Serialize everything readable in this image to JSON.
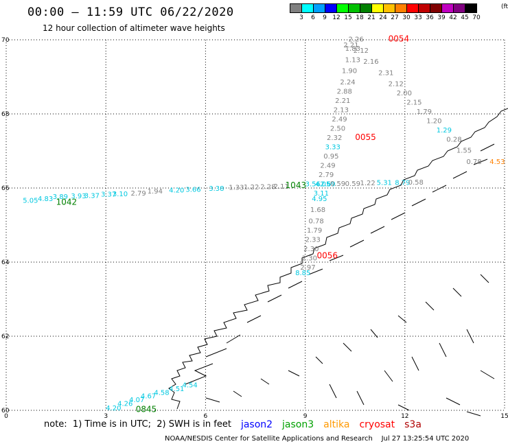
{
  "header": {
    "title": "00:00 – 11:59 UTC 06/22/2020",
    "subtitle": "12 hour collection of altimeter wave heights"
  },
  "legend": {
    "unit": "(ft)",
    "bins": [
      {
        "label": "3",
        "color": "#808080"
      },
      {
        "label": "6",
        "color": "#00ffff"
      },
      {
        "label": "9",
        "color": "#00a0ff"
      },
      {
        "label": "12",
        "color": "#0000ff"
      },
      {
        "label": "15",
        "color": "#00ff00"
      },
      {
        "label": "18",
        "color": "#00c000"
      },
      {
        "label": "21",
        "color": "#008000"
      },
      {
        "label": "24",
        "color": "#ffff00"
      },
      {
        "label": "27",
        "color": "#ffc000"
      },
      {
        "label": "30",
        "color": "#ff8000"
      },
      {
        "label": "33",
        "color": "#ff0000"
      },
      {
        "label": "36",
        "color": "#c00000"
      },
      {
        "label": "39",
        "color": "#800000"
      },
      {
        "label": "42",
        "color": "#c000c0"
      },
      {
        "label": "45",
        "color": "#800080"
      },
      {
        "label": "70",
        "color": "#000000"
      }
    ]
  },
  "map": {
    "lon_ticks": [
      "0",
      "3",
      "6",
      "9",
      "12",
      "15"
    ],
    "lat_ticks": [
      "70",
      "68",
      "66",
      "64",
      "62",
      "60"
    ],
    "lon_range": [
      0,
      15
    ],
    "lat_range": [
      60,
      70
    ],
    "track_east": {
      "points": [
        {
          "lon": 10.3,
          "lat": 69.95,
          "v": "2.26",
          "c": "#808080"
        },
        {
          "lon": 10.15,
          "lat": 69.8,
          "v": "2.21",
          "c": "#808080"
        },
        {
          "lon": 10.2,
          "lat": 69.7,
          "v": "1.83",
          "c": "#808080"
        },
        {
          "lon": 10.45,
          "lat": 69.65,
          "v": "2.12",
          "c": "#808080"
        },
        {
          "lon": 10.2,
          "lat": 69.4,
          "v": "1.13",
          "c": "#808080"
        },
        {
          "lon": 10.75,
          "lat": 69.35,
          "v": "2.16",
          "c": "#808080"
        },
        {
          "lon": 10.1,
          "lat": 69.1,
          "v": "1.90",
          "c": "#808080"
        },
        {
          "lon": 11.2,
          "lat": 69.05,
          "v": "2.31",
          "c": "#808080"
        },
        {
          "lon": 10.05,
          "lat": 68.8,
          "v": "2.24",
          "c": "#808080"
        },
        {
          "lon": 11.5,
          "lat": 68.75,
          "v": "2.12",
          "c": "#808080"
        },
        {
          "lon": 9.95,
          "lat": 68.55,
          "v": "2.88",
          "c": "#808080"
        },
        {
          "lon": 11.75,
          "lat": 68.5,
          "v": "2.00",
          "c": "#808080"
        },
        {
          "lon": 9.9,
          "lat": 68.3,
          "v": "2.21",
          "c": "#808080"
        },
        {
          "lon": 12.05,
          "lat": 68.25,
          "v": "2.15",
          "c": "#808080"
        },
        {
          "lon": 9.85,
          "lat": 68.05,
          "v": "2.13",
          "c": "#808080"
        },
        {
          "lon": 12.35,
          "lat": 68.0,
          "v": "1.79",
          "c": "#808080"
        },
        {
          "lon": 9.8,
          "lat": 67.8,
          "v": "2.49",
          "c": "#808080"
        },
        {
          "lon": 12.65,
          "lat": 67.75,
          "v": "1.20",
          "c": "#808080"
        },
        {
          "lon": 9.75,
          "lat": 67.55,
          "v": "2.50",
          "c": "#808080"
        },
        {
          "lon": 12.95,
          "lat": 67.5,
          "v": "1.29",
          "c": "#00c8e0"
        },
        {
          "lon": 9.65,
          "lat": 67.3,
          "v": "2.32",
          "c": "#808080"
        },
        {
          "lon": 13.25,
          "lat": 67.25,
          "v": "0.28",
          "c": "#808080"
        },
        {
          "lon": 9.6,
          "lat": 67.05,
          "v": "3.33",
          "c": "#00c8e0"
        },
        {
          "lon": 13.55,
          "lat": 66.95,
          "v": "1.55",
          "c": "#808080"
        },
        {
          "lon": 9.55,
          "lat": 66.8,
          "v": "0.95",
          "c": "#808080"
        },
        {
          "lon": 13.85,
          "lat": 66.65,
          "v": "0.78",
          "c": "#808080"
        },
        {
          "lon": 9.45,
          "lat": 66.55,
          "v": "2.49",
          "c": "#808080"
        },
        {
          "lon": 14.55,
          "lat": 66.65,
          "v": "4.53",
          "c": "#ff8000"
        },
        {
          "lon": 9.4,
          "lat": 66.3,
          "v": "2.79",
          "c": "#808080"
        },
        {
          "lon": 9.3,
          "lat": 66.05,
          "v": "4.05",
          "c": "#00c8e0"
        },
        {
          "lon": 9.25,
          "lat": 65.8,
          "v": "3.11",
          "c": "#00c8e0"
        }
      ],
      "pass_labels": [
        {
          "lon": 11.5,
          "lat": 69.95,
          "v": "0054",
          "c": "#ff0000"
        },
        {
          "lon": 10.5,
          "lat": 67.3,
          "v": "0055",
          "c": "#ff0000"
        },
        {
          "lon": 9.35,
          "lat": 64.1,
          "v": "0056",
          "c": "#ff0000"
        }
      ]
    },
    "track_south": {
      "points": [
        {
          "lon": 9.15,
          "lat": 65.35,
          "v": "1.68",
          "c": "#808080"
        },
        {
          "lon": 9.1,
          "lat": 65.05,
          "v": "0.78",
          "c": "#808080"
        },
        {
          "lon": 9.05,
          "lat": 64.8,
          "v": "1.79",
          "c": "#808080"
        },
        {
          "lon": 9.0,
          "lat": 64.55,
          "v": "2.33",
          "c": "#808080"
        },
        {
          "lon": 8.95,
          "lat": 64.3,
          "v": "2.30",
          "c": "#808080"
        },
        {
          "lon": 8.9,
          "lat": 64.05,
          "v": "2.30",
          "c": "#808080"
        },
        {
          "lon": 8.85,
          "lat": 63.8,
          "v": "2.97",
          "c": "#808080"
        },
        {
          "lon": 8.7,
          "lat": 63.65,
          "v": "8.85",
          "c": "#00c8e0"
        }
      ]
    },
    "track_west": {
      "points": [
        {
          "lon": 0.5,
          "lat": 65.6,
          "v": "5.05",
          "c": "#00c8e0"
        },
        {
          "lon": 0.95,
          "lat": 65.65,
          "v": "4.83",
          "c": "#00c8e0"
        },
        {
          "lon": 1.4,
          "lat": 65.7,
          "v": "3.89",
          "c": "#00c8e0"
        },
        {
          "lon": 1.95,
          "lat": 65.72,
          "v": "3.93",
          "c": "#00c8e0"
        },
        {
          "lon": 2.35,
          "lat": 65.73,
          "v": "3.37",
          "c": "#00c8e0"
        },
        {
          "lon": 2.85,
          "lat": 65.77,
          "v": "3.37",
          "c": "#00c8e0"
        },
        {
          "lon": 3.2,
          "lat": 65.78,
          "v": "3.10",
          "c": "#00c8e0"
        },
        {
          "lon": 3.75,
          "lat": 65.8,
          "v": "2.79",
          "c": "#808080"
        },
        {
          "lon": 4.25,
          "lat": 65.85,
          "v": "1.94",
          "c": "#808080"
        },
        {
          "lon": 4.9,
          "lat": 65.88,
          "v": "4.20",
          "c": "#00c8e0"
        },
        {
          "lon": 5.4,
          "lat": 65.9,
          "v": "3.66",
          "c": "#00c8e0"
        },
        {
          "lon": 6.1,
          "lat": 65.93,
          "v": "3.38",
          "c": "#00c8e0"
        },
        {
          "lon": 6.7,
          "lat": 65.95,
          "v": "1.33",
          "c": "#808080"
        },
        {
          "lon": 7.15,
          "lat": 65.96,
          "v": "1.22",
          "c": "#808080"
        },
        {
          "lon": 7.65,
          "lat": 65.97,
          "v": "2.28",
          "c": "#808080"
        },
        {
          "lon": 8.05,
          "lat": 65.98,
          "v": "2.11",
          "c": "#808080"
        },
        {
          "lon": 9.0,
          "lat": 66.05,
          "v": "3.56",
          "c": "#00c8e0"
        },
        {
          "lon": 9.45,
          "lat": 66.05,
          "v": "2.69",
          "c": "#00c8e0"
        },
        {
          "lon": 9.75,
          "lat": 66.06,
          "v": "0.59",
          "c": "#808080"
        },
        {
          "lon": 10.2,
          "lat": 66.06,
          "v": "0.59",
          "c": "#808080"
        },
        {
          "lon": 10.65,
          "lat": 66.07,
          "v": "1.22",
          "c": "#808080"
        },
        {
          "lon": 11.15,
          "lat": 66.08,
          "v": "5.31",
          "c": "#00c8e0"
        },
        {
          "lon": 11.7,
          "lat": 66.08,
          "v": "8.79",
          "c": "#00c8e0"
        },
        {
          "lon": 12.1,
          "lat": 66.09,
          "v": "0.58",
          "c": "#808080"
        },
        {
          "lon": 9.2,
          "lat": 65.65,
          "v": "4.95",
          "c": "#00c8e0"
        }
      ],
      "pass_labels": [
        {
          "lon": 1.5,
          "lat": 65.55,
          "v": "1042",
          "c": "#008000"
        },
        {
          "lon": 8.4,
          "lat": 66.0,
          "v": "1043",
          "c": "#008000"
        }
      ]
    },
    "track_southwest": {
      "points": [
        {
          "lon": 3.0,
          "lat": 60.0,
          "v": "4.20",
          "c": "#00c8e0"
        },
        {
          "lon": 3.35,
          "lat": 60.12,
          "v": "4.26",
          "c": "#00c8e0"
        },
        {
          "lon": 3.7,
          "lat": 60.22,
          "v": "4.07",
          "c": "#00c8e0"
        },
        {
          "lon": 4.05,
          "lat": 60.32,
          "v": "4.67",
          "c": "#00c8e0"
        },
        {
          "lon": 4.45,
          "lat": 60.42,
          "v": "4.58",
          "c": "#00c8e0"
        },
        {
          "lon": 4.9,
          "lat": 60.52,
          "v": "4.51",
          "c": "#00c8e0"
        },
        {
          "lon": 5.3,
          "lat": 60.62,
          "v": "4.54",
          "c": "#00c8e0"
        }
      ],
      "pass_labels": [
        {
          "lon": 3.9,
          "lat": 59.95,
          "v": "0845",
          "c": "#008000"
        }
      ]
    }
  },
  "footer": {
    "note": "note:  1) Time is in UTC;  2) SWH is in feet",
    "satellites": [
      {
        "name": "jason2",
        "color": "#0000ff"
      },
      {
        "name": "jason3",
        "color": "#00a000"
      },
      {
        "name": "altika",
        "color": "#ff9900"
      },
      {
        "name": "cryosat",
        "color": "#ff0000"
      },
      {
        "name": "s3a",
        "color": "#b00000"
      }
    ],
    "credit": "NOAA/NESDIS Center for Satellite Applications and Research    Jul 27 13:25:54 UTC 2020"
  }
}
